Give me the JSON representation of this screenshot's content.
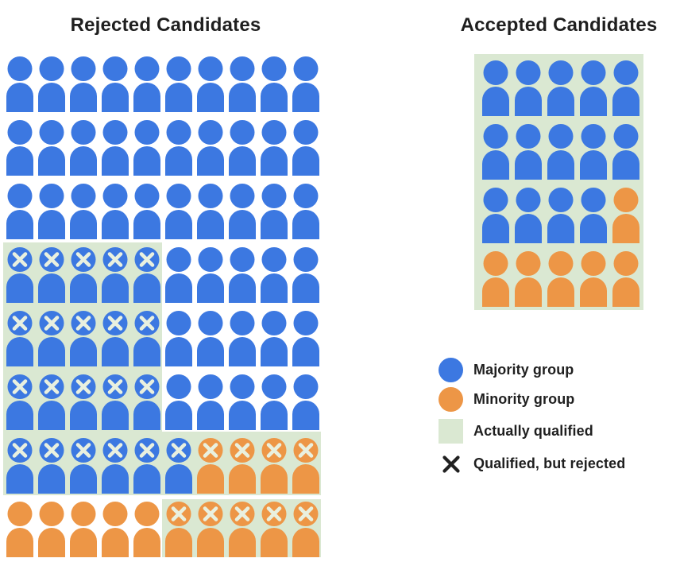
{
  "colors": {
    "majority_blue": "#3C78E1",
    "minority_orange": "#ED9646",
    "qualified_green": "#DAE8D2",
    "x_mark_on_person": "#E9F0DF",
    "legend_x_black": "#212121",
    "text": "#1F1F1F",
    "background": "#FFFFFF"
  },
  "cell_codes": {
    "B": "majority member (blue person)",
    "X": "majority member, qualified but rejected (blue person with X)",
    "O": "minority member (orange person)",
    "Q": "minority member, qualified but rejected (orange person with X)"
  },
  "rejected": {
    "title": "Rejected Candidates",
    "rows": [
      "BBBBBBBBBB",
      "BBBBBBBBBB",
      "BBBBBBBBBB",
      "XXXXXBBBBB",
      "XXXXXBBBBB",
      "XXXXXBBBBB",
      "XXXXXXQQQQ",
      "OOOOOQQQQQ"
    ]
  },
  "accepted": {
    "title": "Accepted Candidates",
    "rows": [
      "BBBBB",
      "BBBBB",
      "BBBBO",
      "OOOOO"
    ]
  },
  "legend": {
    "items": [
      {
        "swatch": "blue-circle",
        "label": "Majority group"
      },
      {
        "swatch": "orange-circle",
        "label": "Minority group"
      },
      {
        "swatch": "green-square",
        "label": "Actually qualified"
      },
      {
        "swatch": "black-x",
        "label": "Qualified, but rejected"
      }
    ]
  },
  "chart_data": {
    "type": "pictogram",
    "subtype": "icon-array waffle chart",
    "panels": [
      {
        "title": "Rejected Candidates",
        "columns": 10,
        "rows": 8,
        "total_icons": 80,
        "icon_rows": [
          "BBBBBBBBBB",
          "BBBBBBBBBB",
          "BBBBBBBBBB",
          "XXXXXBBBBB",
          "XXXXXBBBBB",
          "XXXXXBBBBB",
          "XXXXXXQQQQ",
          "OOOOOQQQQQ"
        ],
        "counts": {
          "majority_total": 66,
          "minority_total": 14,
          "majority_qualified_but_rejected": 21,
          "minority_qualified_but_rejected": 9,
          "majority_not_qualified": 45,
          "minority_not_qualified": 5,
          "qualified_but_rejected_total": 30
        },
        "qualified_zones": "rows 4-6 columns 1-5; row 7 columns 1-10; row 8 columns 6-10 (green background)"
      },
      {
        "title": "Accepted Candidates",
        "columns": 5,
        "rows": 4,
        "total_icons": 20,
        "icon_rows": [
          "BBBBB",
          "BBBBB",
          "BBBBO",
          "OOOOO"
        ],
        "counts": {
          "majority_total": 14,
          "minority_total": 6,
          "all_actually_qualified": 20
        },
        "qualified_zones": "entire panel (green background)"
      }
    ],
    "legend_entries": [
      "Majority group",
      "Minority group",
      "Actually qualified",
      "Qualified, but rejected"
    ],
    "notes": "Green shading marks actually-qualified candidates; X marks qualified candidates who were rejected. Blue = majority group, orange = minority group."
  }
}
